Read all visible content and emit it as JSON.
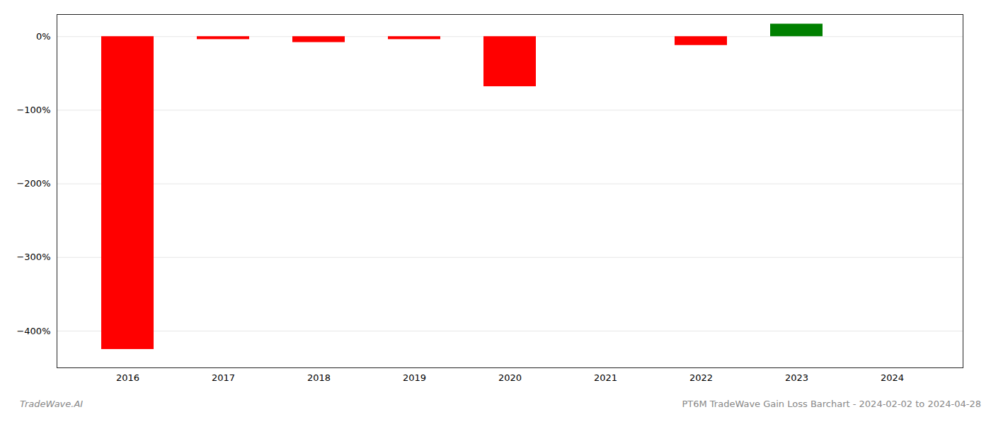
{
  "chart_data": {
    "type": "bar",
    "categories": [
      "2016",
      "2017",
      "2018",
      "2019",
      "2020",
      "2021",
      "2022",
      "2023",
      "2024"
    ],
    "values": [
      -425,
      -4,
      -8,
      -4,
      -68,
      0,
      -12,
      17,
      0
    ],
    "colors": [
      "#ff0000",
      "#ff0000",
      "#ff0000",
      "#ff0000",
      "#ff0000",
      null,
      "#ff0000",
      "#008000",
      null
    ],
    "ylim": [
      -450,
      30
    ],
    "yticks": [
      {
        "value": 0,
        "label": "0%"
      },
      {
        "value": -100,
        "label": "−100%"
      },
      {
        "value": -200,
        "label": "−200%"
      },
      {
        "value": -300,
        "label": "−300%"
      },
      {
        "value": -400,
        "label": "−400%"
      }
    ],
    "grid": true,
    "annotations": [
      "TradeWave.AI",
      "PT6M TradeWave Gain Loss Barchart - 2024-02-02 to 2024-04-28"
    ]
  }
}
